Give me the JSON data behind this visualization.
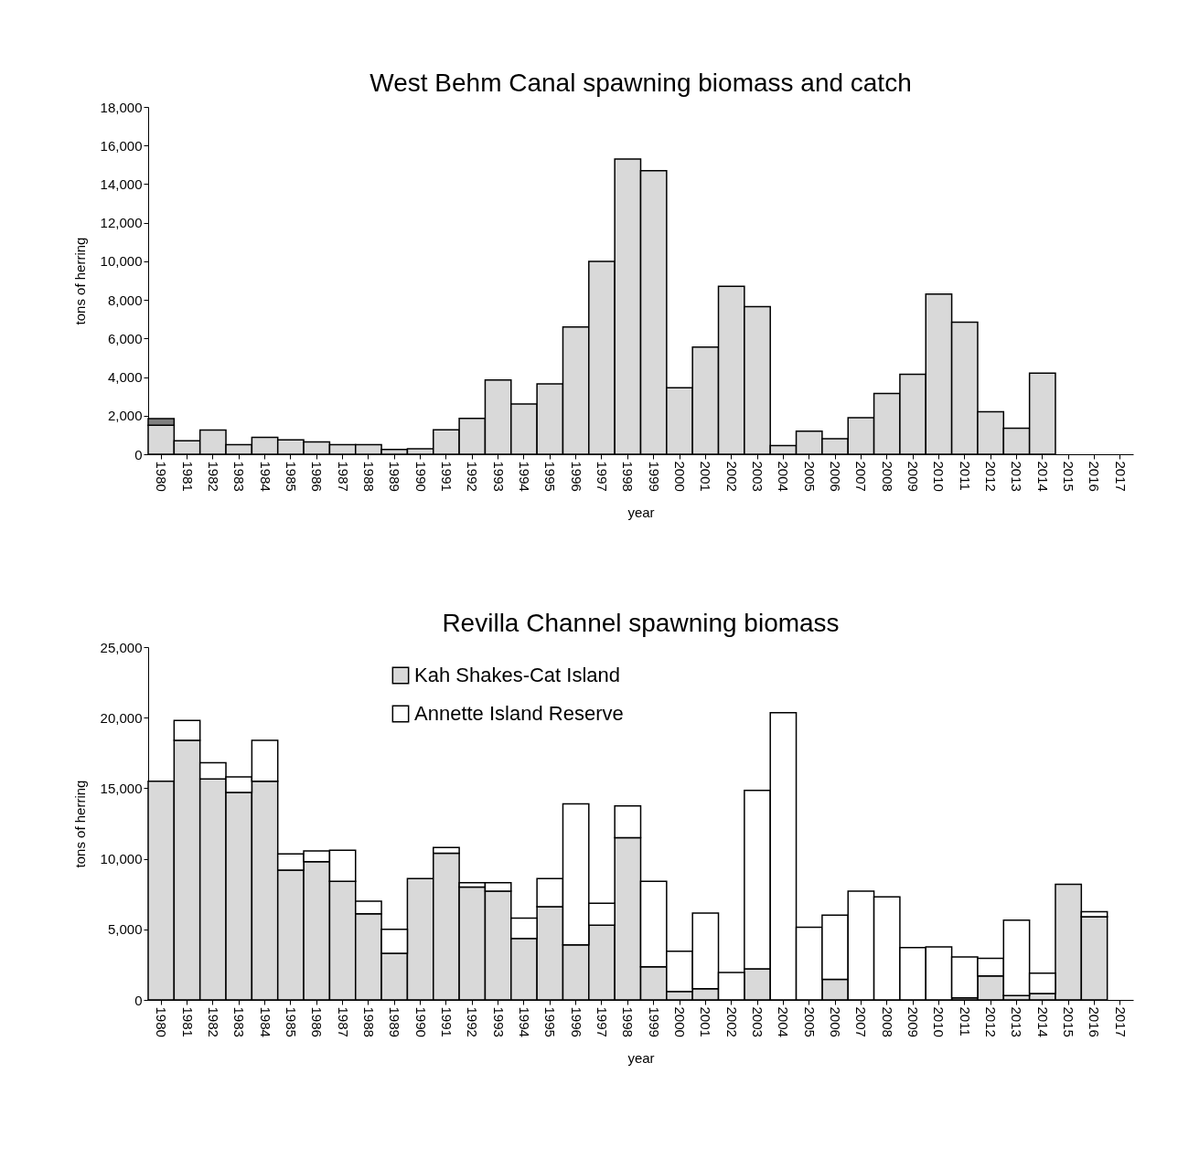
{
  "chart_data": [
    {
      "type": "bar",
      "title": "West Behm Canal spawning biomass and catch",
      "xlabel": "year",
      "ylabel": "tons of herring",
      "stacked": true,
      "legend": false,
      "grid": false,
      "categories": [
        "1980",
        "1981",
        "1982",
        "1983",
        "1984",
        "1985",
        "1986",
        "1987",
        "1988",
        "1989",
        "1990",
        "1991",
        "1992",
        "1993",
        "1994",
        "1995",
        "1996",
        "1997",
        "1998",
        "1999",
        "2000",
        "2001",
        "2002",
        "2003",
        "2004",
        "2005",
        "2006",
        "2007",
        "2008",
        "2009",
        "2010",
        "2011",
        "2012",
        "2013",
        "2014",
        "2015",
        "2016",
        "2017"
      ],
      "ylim": [
        0,
        18000
      ],
      "yticks": [
        0,
        {
          "value": 2000,
          "label": "2,000"
        },
        {
          "value": 4000,
          "label": "4,000"
        },
        {
          "value": 6000,
          "label": "6,000"
        },
        {
          "value": 8000,
          "label": "8,000"
        },
        {
          "value": 10000,
          "label": "10,000"
        },
        {
          "value": 12000,
          "label": "12,000"
        },
        {
          "value": 14000,
          "label": "14,000"
        },
        {
          "value": 16000,
          "label": "16,000"
        },
        {
          "value": 18000,
          "label": "18,000"
        }
      ],
      "series": [
        {
          "color": "#d9d9d9",
          "values": [
            1500,
            700,
            1250,
            500,
            880,
            750,
            640,
            500,
            500,
            250,
            280,
            1270,
            1860,
            3850,
            2600,
            3650,
            6600,
            10000,
            15300,
            14700,
            3450,
            5550,
            8700,
            7650,
            450,
            1200,
            800,
            1900,
            3150,
            4150,
            8300,
            6850,
            2200,
            1350,
            4200,
            null,
            null,
            null
          ]
        },
        {
          "color": "#808080",
          "values": [
            350,
            null,
            null,
            null,
            null,
            null,
            null,
            null,
            null,
            null,
            null,
            null,
            null,
            null,
            null,
            null,
            null,
            null,
            null,
            null,
            null,
            null,
            null,
            null,
            null,
            null,
            null,
            null,
            null,
            null,
            null,
            null,
            null,
            null,
            null,
            null,
            null,
            null
          ]
        }
      ]
    },
    {
      "type": "bar",
      "title": "Revilla Channel spawning biomass",
      "xlabel": "year",
      "ylabel": "tons of herring",
      "stacked": true,
      "legend": "top",
      "grid": false,
      "categories": [
        "1980",
        "1981",
        "1982",
        "1983",
        "1984",
        "1985",
        "1986",
        "1987",
        "1988",
        "1989",
        "1990",
        "1991",
        "1992",
        "1993",
        "1994",
        "1995",
        "1996",
        "1997",
        "1998",
        "1999",
        "2000",
        "2001",
        "2002",
        "2003",
        "2004",
        "2005",
        "2006",
        "2007",
        "2008",
        "2009",
        "2010",
        "2011",
        "2012",
        "2013",
        "2014",
        "2015",
        "2016",
        "2017"
      ],
      "ylim": [
        0,
        25000
      ],
      "yticks": [
        0,
        {
          "value": 5000,
          "label": "5,000"
        },
        {
          "value": 10000,
          "label": "10,000"
        },
        {
          "value": 15000,
          "label": "15,000"
        },
        {
          "value": 20000,
          "label": "20,000"
        },
        {
          "value": 25000,
          "label": "25,000"
        }
      ],
      "series": [
        {
          "name": "Kah Shakes-Cat Island",
          "color": "#d9d9d9",
          "values": [
            15500,
            18400,
            15650,
            14700,
            15500,
            9200,
            9800,
            8400,
            6100,
            3300,
            8600,
            10400,
            8000,
            7700,
            4350,
            6600,
            3900,
            5300,
            11500,
            2350,
            600,
            800,
            null,
            2200,
            null,
            null,
            1450,
            null,
            null,
            null,
            null,
            150,
            1700,
            300,
            450,
            8200,
            5900,
            null
          ]
        },
        {
          "name": "Annette Island Reserve",
          "color": "#ffffff",
          "values": [
            null,
            1400,
            1150,
            1100,
            2900,
            1150,
            750,
            2200,
            900,
            1700,
            null,
            400,
            300,
            600,
            1450,
            2000,
            10000,
            1550,
            2250,
            6050,
            2850,
            5350,
            1950,
            12650,
            20350,
            5150,
            4550,
            7700,
            7300,
            3700,
            3750,
            2900,
            1250,
            5350,
            1450,
            null,
            350,
            null
          ]
        }
      ]
    }
  ]
}
